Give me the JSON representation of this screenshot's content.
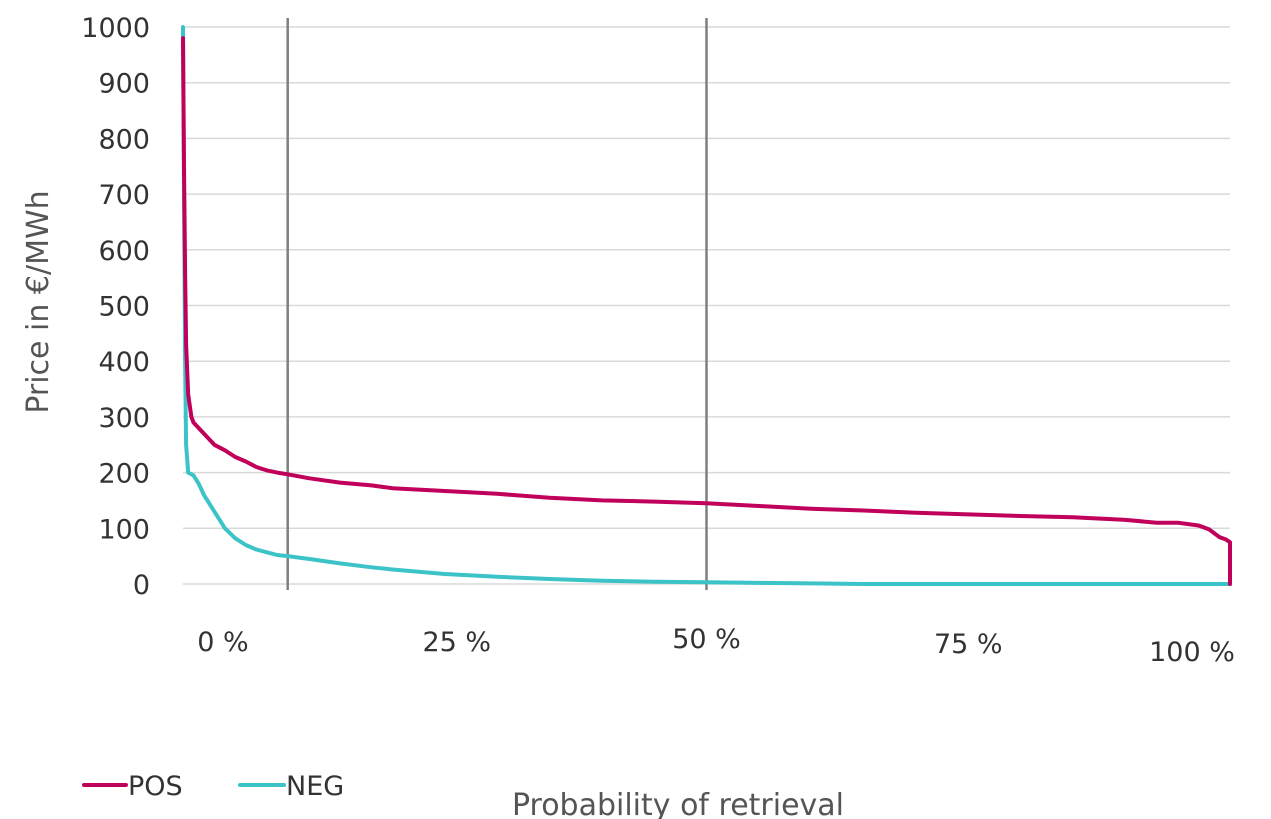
{
  "chart_data": {
    "type": "line",
    "title": "",
    "xlabel": "Probability of retrieval",
    "ylabel": "Price in €/MWh",
    "xlim": [
      0,
      100
    ],
    "ylim": [
      0,
      1000
    ],
    "y_ticks": [
      "0",
      "100",
      "200",
      "300",
      "400",
      "500",
      "600",
      "700",
      "800",
      "900",
      "1000"
    ],
    "x_ticks": [
      "0 %",
      "25 %",
      "50 %",
      "75 %",
      "100 %"
    ],
    "grid": "horizontal",
    "legend_position": "bottom-left",
    "reference_lines_x": [
      10,
      50
    ],
    "series": [
      {
        "name": "POS",
        "color": "#c0005a",
        "x": [
          0,
          0.1,
          0.2,
          0.3,
          0.5,
          0.8,
          1,
          2,
          3,
          4,
          5,
          6,
          7,
          8,
          9,
          10,
          12,
          15,
          18,
          20,
          25,
          30,
          35,
          40,
          45,
          50,
          55,
          60,
          65,
          70,
          75,
          80,
          85,
          90,
          93,
          95,
          97,
          98,
          99,
          99.6,
          100,
          100
        ],
        "y": [
          980,
          750,
          560,
          430,
          340,
          300,
          290,
          270,
          250,
          240,
          228,
          220,
          210,
          204,
          200,
          197,
          190,
          182,
          177,
          172,
          167,
          162,
          155,
          150,
          148,
          145,
          140,
          135,
          132,
          128,
          125,
          122,
          120,
          115,
          110,
          110,
          105,
          98,
          84,
          80,
          75,
          0
        ]
      },
      {
        "name": "NEG",
        "color": "#3cc3c8",
        "x": [
          0,
          0.1,
          0.2,
          0.3,
          0.5,
          1,
          1.5,
          2,
          3,
          4,
          5,
          6,
          7,
          8,
          9,
          10,
          12,
          15,
          18,
          20,
          25,
          30,
          35,
          40,
          45,
          50,
          55,
          60,
          65,
          70,
          75,
          80,
          90,
          100
        ],
        "y": [
          1000,
          700,
          400,
          250,
          200,
          195,
          180,
          160,
          130,
          100,
          82,
          70,
          62,
          57,
          52,
          50,
          45,
          37,
          30,
          26,
          18,
          13,
          9,
          6,
          4,
          3,
          2,
          1,
          0,
          0,
          0,
          0,
          0,
          0
        ]
      }
    ]
  }
}
